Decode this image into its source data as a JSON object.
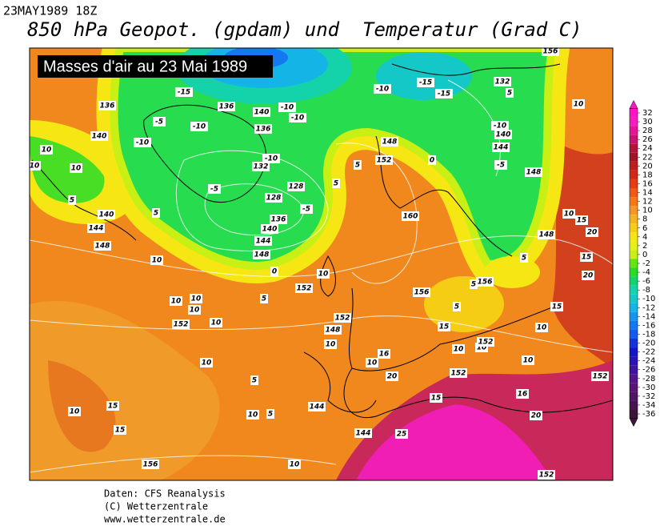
{
  "header": {
    "timestamp": "23MAY1989 18Z",
    "title": "850 hPa Geopot. (gpdam) und  Temperatur (Grad C)"
  },
  "overlay_title": "Masses d'air au 23 Mai 1989",
  "colorbar": {
    "ticks": [
      32,
      30,
      28,
      26,
      24,
      22,
      20,
      18,
      16,
      14,
      12,
      10,
      8,
      6,
      4,
      2,
      0,
      -2,
      -4,
      -6,
      -8,
      -10,
      -12,
      -14,
      -16,
      -18,
      -20,
      -22,
      -24,
      -26,
      -28,
      -30,
      -32,
      -34,
      -36
    ],
    "colors": [
      "#ff14c8",
      "#f51ebe",
      "#e61496",
      "#c8146e",
      "#b4143c",
      "#a01428",
      "#be1e1e",
      "#d22814",
      "#e63c14",
      "#f05a14",
      "#f57814",
      "#f59628",
      "#f5b41e",
      "#f5cd14",
      "#f5e614",
      "#e6f014",
      "#c8f014",
      "#64e614",
      "#28dc28",
      "#14d26e",
      "#14d2aa",
      "#14c8c8",
      "#14b4e6",
      "#1496f0",
      "#1478f0",
      "#145af0",
      "#1432dc",
      "#1414c8",
      "#2814b4",
      "#3c14a0",
      "#50148c",
      "#5a1478",
      "#501464",
      "#461450",
      "#3c143c"
    ]
  },
  "map": {
    "contour_labels": [
      136,
      -5,
      140,
      10,
      10,
      10,
      -10,
      5,
      140,
      144,
      148,
      5,
      -15,
      -10,
      136,
      140,
      136,
      -10,
      -10,
      -10,
      132,
      -5,
      128,
      128,
      -5,
      136,
      140,
      144,
      148,
      0,
      10,
      5,
      152,
      10,
      10,
      10,
      10,
      152,
      10,
      152,
      10,
      148,
      16,
      20,
      152,
      16,
      15,
      20,
      25,
      144,
      144,
      10,
      5,
      5,
      10,
      15,
      10,
      15,
      156,
      10,
      152,
      152,
      10,
      10,
      152,
      10,
      15,
      5,
      156,
      5,
      156,
      160,
      5,
      152,
      148,
      0,
      5,
      -10,
      -15,
      -15,
      132,
      156,
      5,
      10,
      -10,
      140,
      144,
      -5,
      148,
      10,
      15,
      20,
      148,
      15,
      20,
      5,
      15,
      10,
      10
    ]
  },
  "footer": {
    "source": "Daten: CFS Reanalysis",
    "copyright": "(C) Wetterzentrale",
    "url": "www.wetterzentrale.de"
  }
}
